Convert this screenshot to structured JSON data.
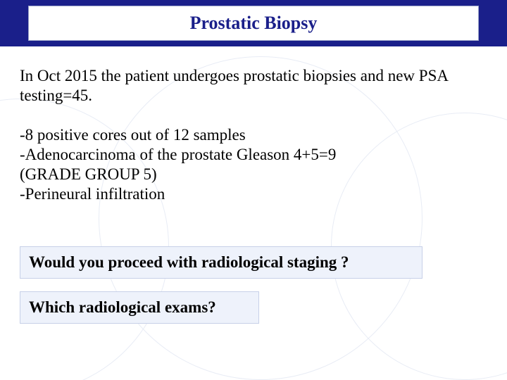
{
  "colors": {
    "header_bar_bg": "#1a1f8a",
    "header_inner_bg": "#ffffff",
    "header_inner_border": "#9aa3c8",
    "header_text": "#1a1f8a",
    "body_text": "#000000",
    "question_bg": "#eef2fb",
    "question_border": "#c7d0e8",
    "circle_stroke": "#e8ecf5",
    "page_bg": "#ffffff"
  },
  "typography": {
    "font_family": "Times New Roman",
    "title_size_pt": 20,
    "body_size_pt": 17,
    "question_size_pt": 17,
    "title_weight": "bold",
    "question_weight": "bold"
  },
  "header": {
    "title": "Prostatic Biopsy"
  },
  "body": {
    "intro": "In Oct 2015 the patient undergoes prostatic biopsies and new PSA testing=45.",
    "findings": [
      "-8 positive cores out of 12 samples",
      "-Adenocarcinoma of the prostate Gleason 4+5=9",
      " (GRADE GROUP 5)",
      "-Perineural infiltration"
    ]
  },
  "questions": [
    "Would you proceed with radiological staging ?",
    "Which radiological exams?"
  ]
}
